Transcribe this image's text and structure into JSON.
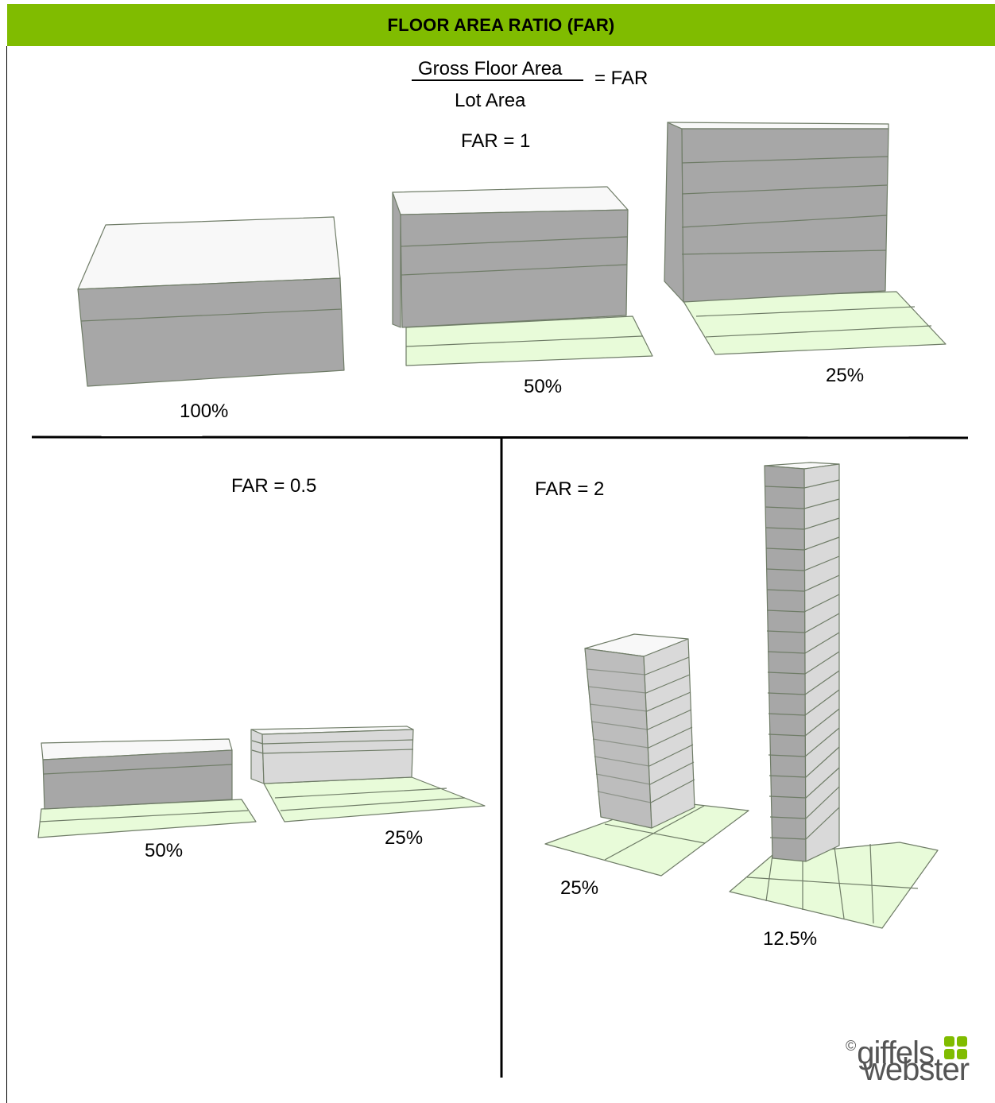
{
  "header": {
    "title": "FLOOR AREA RATIO (FAR)"
  },
  "formula": {
    "numerator": "Gross Floor Area",
    "denominator": "Lot Area",
    "result": "= FAR"
  },
  "sections": {
    "far1": {
      "label": "FAR = 1",
      "coverages": [
        "100%",
        "50%",
        "25%"
      ]
    },
    "far05": {
      "label": "FAR = 0.5",
      "coverages": [
        "50%",
        "25%"
      ]
    },
    "far2": {
      "label": "FAR = 2",
      "coverages": [
        "25%",
        "12.5%"
      ]
    }
  },
  "logo": {
    "copyright": "©",
    "line1": "giffels",
    "line2": "webster"
  },
  "colors": {
    "header": "#80BC00",
    "lot": "#E8FBD9",
    "lot_line": "#6f7c67",
    "building_front": "#A7A7A7",
    "building_side": "#D9D9D9",
    "roof": "#F8F8F8",
    "logo_mark": "#80BC00"
  }
}
